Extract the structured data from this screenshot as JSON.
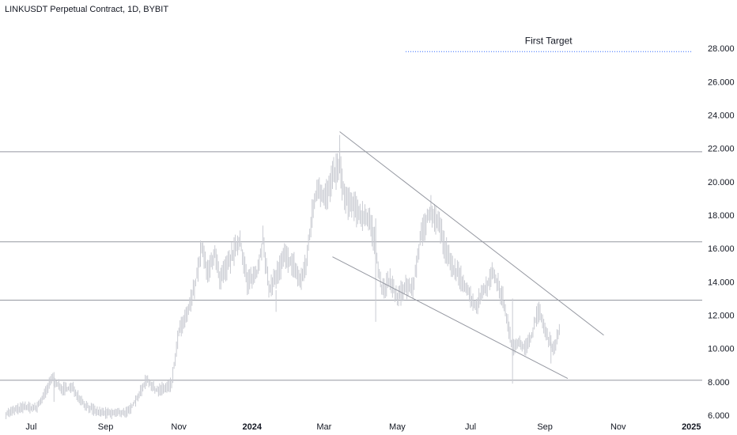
{
  "chart_title": "LINKUSDT Perpetual Contract, 1D, BYBIT",
  "chart_data": {
    "type": "line",
    "title": "LINKUSDT Perpetual Contract, 1D, BYBIT",
    "ylim": [
      6.0,
      29.0
    ],
    "y_ticks": [
      "6.000",
      "8.000",
      "10.000",
      "12.000",
      "14.000",
      "16.000",
      "18.000",
      "20.000",
      "22.000",
      "24.000",
      "26.000",
      "28.000"
    ],
    "x_ticks": [
      {
        "label": "Jul",
        "date": "2023-07-01"
      },
      {
        "label": "Sep",
        "date": "2023-09-01"
      },
      {
        "label": "Nov",
        "date": "2023-11-01"
      },
      {
        "label": "2024",
        "date": "2024-01-01",
        "bold": true
      },
      {
        "label": "Mar",
        "date": "2024-03-01"
      },
      {
        "label": "May",
        "date": "2024-05-01"
      },
      {
        "label": "Jul",
        "date": "2024-07-01"
      },
      {
        "label": "Sep",
        "date": "2024-09-01"
      },
      {
        "label": "Nov",
        "date": "2024-11-01"
      },
      {
        "label": "2025",
        "date": "2025-01-01",
        "bold": true
      }
    ],
    "x_range": [
      "2023-06-05",
      "2025-02-08"
    ],
    "series": [
      {
        "color": "#c9cbd2",
        "points": [
          [
            "2023-06-10",
            6.1
          ],
          [
            "2023-06-25",
            6.5
          ],
          [
            "2023-07-05",
            6.4
          ],
          [
            "2023-07-12",
            7.2
          ],
          [
            "2023-07-19",
            8.3
          ],
          [
            "2023-07-25",
            7.6
          ],
          [
            "2023-08-05",
            7.6
          ],
          [
            "2023-08-15",
            6.6
          ],
          [
            "2023-08-25",
            6.2
          ],
          [
            "2023-09-05",
            6.1
          ],
          [
            "2023-09-20",
            6.2
          ],
          [
            "2023-10-01",
            7.5
          ],
          [
            "2023-10-05",
            8.2
          ],
          [
            "2023-10-12",
            7.5
          ],
          [
            "2023-10-20",
            7.6
          ],
          [
            "2023-10-26",
            7.9
          ],
          [
            "2023-11-01",
            11.0
          ],
          [
            "2023-11-08",
            12.0
          ],
          [
            "2023-11-15",
            14.0
          ],
          [
            "2023-11-20",
            16.0
          ],
          [
            "2023-11-25",
            14.5
          ],
          [
            "2023-12-01",
            15.8
          ],
          [
            "2023-12-05",
            14.0
          ],
          [
            "2023-12-15",
            15.5
          ],
          [
            "2023-12-22",
            16.5
          ],
          [
            "2023-12-28",
            14.0
          ],
          [
            "2024-01-05",
            14.5
          ],
          [
            "2024-01-10",
            16.5
          ],
          [
            "2024-01-15",
            13.5
          ],
          [
            "2024-01-22",
            14.5
          ],
          [
            "2024-01-28",
            15.5
          ],
          [
            "2024-02-05",
            15.0
          ],
          [
            "2024-02-10",
            14.0
          ],
          [
            "2024-02-15",
            15.0
          ],
          [
            "2024-02-20",
            18.0
          ],
          [
            "2024-02-25",
            19.8
          ],
          [
            "2024-03-01",
            19.0
          ],
          [
            "2024-03-05",
            19.5
          ],
          [
            "2024-03-10",
            20.5
          ],
          [
            "2024-03-14",
            21.0
          ],
          [
            "2024-03-18",
            19.0
          ],
          [
            "2024-03-25",
            18.5
          ],
          [
            "2024-04-01",
            18.0
          ],
          [
            "2024-04-08",
            17.8
          ],
          [
            "2024-04-13",
            16.0
          ],
          [
            "2024-04-18",
            13.5
          ],
          [
            "2024-04-25",
            14.0
          ],
          [
            "2024-05-01",
            13.0
          ],
          [
            "2024-05-08",
            13.8
          ],
          [
            "2024-05-14",
            13.5
          ],
          [
            "2024-05-20",
            16.5
          ],
          [
            "2024-05-28",
            18.2
          ],
          [
            "2024-06-05",
            17.5
          ],
          [
            "2024-06-10",
            16.0
          ],
          [
            "2024-06-15",
            15.0
          ],
          [
            "2024-06-20",
            14.5
          ],
          [
            "2024-06-25",
            14.0
          ],
          [
            "2024-07-05",
            12.5
          ],
          [
            "2024-07-12",
            13.5
          ],
          [
            "2024-07-20",
            14.5
          ],
          [
            "2024-07-28",
            13.0
          ],
          [
            "2024-08-05",
            10.0
          ],
          [
            "2024-08-10",
            10.5
          ],
          [
            "2024-08-15",
            10.0
          ],
          [
            "2024-08-20",
            10.5
          ],
          [
            "2024-08-25",
            12.0
          ],
          [
            "2024-08-28",
            12.2
          ],
          [
            "2024-09-02",
            10.8
          ],
          [
            "2024-09-08",
            10.0
          ],
          [
            "2024-09-13",
            11.0
          ]
        ]
      }
    ],
    "lows": [
      {
        "date": "2023-07-20",
        "value": 6.8
      },
      {
        "date": "2024-01-21",
        "value": 12.2
      },
      {
        "date": "2024-04-13",
        "value": 11.6
      },
      {
        "date": "2024-08-05",
        "value": 7.9
      },
      {
        "date": "2024-09-06",
        "value": 9.1
      }
    ],
    "highs": [
      {
        "date": "2024-03-14",
        "value": 22.8
      },
      {
        "date": "2024-05-29",
        "value": 19.2
      }
    ],
    "horizontal_levels": [
      21.8,
      16.4,
      12.9,
      8.1
    ],
    "trendlines": [
      {
        "from": {
          "date": "2024-03-14",
          "value": 23.0
        },
        "to": {
          "date": "2024-10-20",
          "value": 10.8
        }
      },
      {
        "from": {
          "date": "2024-03-08",
          "value": 15.5
        },
        "to": {
          "date": "2024-09-20",
          "value": 8.2
        }
      }
    ],
    "target": {
      "label": "First Target",
      "value": 27.8,
      "from_date": "2024-05-08",
      "to_date": "2025-01-01"
    },
    "grid": false,
    "legend": "none"
  }
}
